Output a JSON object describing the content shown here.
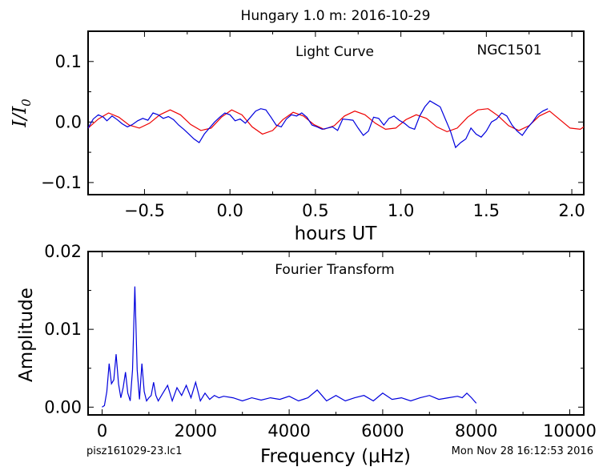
{
  "header": {
    "title": "Hungary 1.0 m:  2016-10-29",
    "footer_left": "pisz161029-23.lc1",
    "footer_right": "Mon Nov 28 16:12:53 2016"
  },
  "chart_data": [
    {
      "type": "line",
      "panel": "light-curve",
      "annotation_left": "Light Curve",
      "annotation_right": "NGC1501",
      "xlabel": "hours UT",
      "ylabel": "I/I0",
      "xlim": [
        -0.83,
        2.07
      ],
      "ylim": [
        -0.12,
        0.15
      ],
      "xticks": [
        -0.5,
        0.0,
        0.5,
        1.0,
        1.5,
        2.0
      ],
      "xtick_labels": [
        "−0.5",
        "0.0",
        "0.5",
        "1.0",
        "1.5",
        "2.0"
      ],
      "yticks": [
        -0.1,
        0.0,
        0.1
      ],
      "ytick_labels": [
        "−0.1",
        "0.0",
        "0.1"
      ],
      "colors": {
        "data": "#0000dd",
        "model": "#ee0000"
      },
      "series": [
        {
          "role": "data",
          "x": [
            -0.83,
            -0.8,
            -0.77,
            -0.74,
            -0.72,
            -0.69,
            -0.66,
            -0.63,
            -0.6,
            -0.57,
            -0.54,
            -0.51,
            -0.48,
            -0.45,
            -0.42,
            -0.39,
            -0.36,
            -0.33,
            -0.3,
            -0.27,
            -0.24,
            -0.21,
            -0.18,
            -0.15,
            -0.12,
            -0.09,
            -0.06,
            -0.03,
            0.0,
            0.03,
            0.06,
            0.09,
            0.12,
            0.15,
            0.18,
            0.21,
            0.24,
            0.27,
            0.3,
            0.33,
            0.36,
            0.39,
            0.42,
            0.45,
            0.48,
            0.51,
            0.54,
            0.57,
            0.6,
            0.63,
            0.66,
            0.69,
            0.72,
            0.75,
            0.78,
            0.81,
            0.84,
            0.87,
            0.9,
            0.93,
            0.96,
            0.99,
            1.02,
            1.05,
            1.08,
            1.11,
            1.14,
            1.17,
            1.2,
            1.23,
            1.26,
            1.29,
            1.32,
            1.35,
            1.38,
            1.41,
            1.44,
            1.47,
            1.5,
            1.53,
            1.56,
            1.59,
            1.62,
            1.65,
            1.68,
            1.71,
            1.74,
            1.77,
            1.8,
            1.83,
            1.86
          ],
          "y": [
            -0.01,
            0.005,
            0.012,
            0.008,
            0.002,
            0.01,
            0.004,
            -0.003,
            -0.008,
            -0.004,
            0.002,
            0.006,
            0.003,
            0.015,
            0.012,
            0.006,
            0.009,
            0.004,
            -0.005,
            -0.012,
            -0.02,
            -0.028,
            -0.034,
            -0.02,
            -0.01,
            0.0,
            0.008,
            0.015,
            0.012,
            0.002,
            0.005,
            -0.002,
            0.008,
            0.018,
            0.022,
            0.02,
            0.008,
            -0.005,
            -0.008,
            0.005,
            0.012,
            0.01,
            0.015,
            0.008,
            -0.005,
            -0.008,
            -0.012,
            -0.01,
            -0.008,
            -0.014,
            0.005,
            0.004,
            0.003,
            -0.01,
            -0.022,
            -0.015,
            0.008,
            0.006,
            -0.005,
            0.006,
            0.01,
            0.003,
            -0.002,
            -0.009,
            -0.012,
            0.01,
            0.025,
            0.035,
            0.03,
            0.025,
            0.005,
            -0.015,
            -0.042,
            -0.034,
            -0.028,
            -0.01,
            -0.02,
            -0.025,
            -0.015,
            0.0,
            0.005,
            0.015,
            0.01,
            -0.005,
            -0.015,
            -0.022,
            -0.01,
            0.0,
            0.012,
            0.018,
            0.022
          ]
        },
        {
          "role": "model",
          "x": [
            -0.83,
            -0.77,
            -0.71,
            -0.65,
            -0.59,
            -0.53,
            -0.47,
            -0.41,
            -0.35,
            -0.29,
            -0.23,
            -0.17,
            -0.11,
            -0.05,
            0.01,
            0.07,
            0.13,
            0.19,
            0.25,
            0.31,
            0.37,
            0.43,
            0.49,
            0.55,
            0.61,
            0.67,
            0.73,
            0.79,
            0.85,
            0.91,
            0.97,
            1.03,
            1.09,
            1.15,
            1.21,
            1.27,
            1.33,
            1.39,
            1.45,
            1.51,
            1.57,
            1.63,
            1.69,
            1.75,
            1.81,
            1.87,
            1.93,
            1.99,
            2.05,
            2.07
          ],
          "y": [
            -0.01,
            0.005,
            0.015,
            0.008,
            -0.005,
            -0.01,
            -0.002,
            0.012,
            0.02,
            0.012,
            -0.004,
            -0.014,
            -0.01,
            0.008,
            0.02,
            0.012,
            -0.008,
            -0.02,
            -0.014,
            0.004,
            0.016,
            0.01,
            -0.004,
            -0.012,
            -0.006,
            0.01,
            0.018,
            0.012,
            -0.002,
            -0.012,
            -0.01,
            0.004,
            0.012,
            0.006,
            -0.008,
            -0.016,
            -0.01,
            0.008,
            0.02,
            0.022,
            0.01,
            -0.006,
            -0.014,
            -0.006,
            0.01,
            0.018,
            0.004,
            -0.01,
            -0.012,
            -0.008
          ]
        }
      ]
    },
    {
      "type": "line",
      "panel": "fourier-transform",
      "annotation": "Fourier Transform",
      "xlabel": "Frequency (μHz)",
      "ylabel": "Amplitude",
      "xlim": [
        -300,
        10300
      ],
      "ylim": [
        -0.001,
        0.02
      ],
      "xticks": [
        0,
        2000,
        4000,
        6000,
        8000,
        10000
      ],
      "xtick_labels": [
        "0",
        "2000",
        "4000",
        "6000",
        "8000",
        "10000"
      ],
      "yticks": [
        0.0,
        0.01,
        0.02
      ],
      "ytick_labels": [
        "0.00",
        "0.01",
        "0.02"
      ],
      "colors": {
        "data": "#0000dd"
      },
      "series": [
        {
          "role": "spectrum",
          "x": [
            0,
            50,
            100,
            150,
            200,
            250,
            300,
            350,
            400,
            450,
            500,
            550,
            600,
            650,
            700,
            750,
            800,
            850,
            900,
            950,
            1000,
            1050,
            1100,
            1150,
            1200,
            1300,
            1400,
            1500,
            1600,
            1700,
            1800,
            1900,
            2000,
            2100,
            2200,
            2300,
            2400,
            2500,
            2600,
            2800,
            3000,
            3200,
            3400,
            3600,
            3800,
            4000,
            4200,
            4400,
            4600,
            4700,
            4800,
            5000,
            5200,
            5400,
            5600,
            5800,
            6000,
            6200,
            6400,
            6600,
            6800,
            7000,
            7200,
            7400,
            7600,
            7700,
            7800,
            7900,
            8000
          ],
          "y": [
            0.0,
            0.0002,
            0.002,
            0.0056,
            0.003,
            0.0035,
            0.0068,
            0.003,
            0.0012,
            0.0025,
            0.0045,
            0.0018,
            0.0008,
            0.0048,
            0.0155,
            0.0048,
            0.001,
            0.0056,
            0.002,
            0.0008,
            0.0012,
            0.0015,
            0.0032,
            0.0015,
            0.0008,
            0.0018,
            0.0028,
            0.0008,
            0.0025,
            0.0015,
            0.0028,
            0.0012,
            0.0032,
            0.0008,
            0.0018,
            0.001,
            0.0015,
            0.0012,
            0.0014,
            0.0012,
            0.0008,
            0.0012,
            0.0009,
            0.0012,
            0.001,
            0.0014,
            0.0008,
            0.0012,
            0.0022,
            0.0015,
            0.0008,
            0.0015,
            0.0008,
            0.0012,
            0.0015,
            0.0008,
            0.0018,
            0.001,
            0.0012,
            0.0008,
            0.0012,
            0.0015,
            0.001,
            0.0012,
            0.0014,
            0.0012,
            0.0018,
            0.0012,
            0.0005
          ]
        }
      ]
    }
  ]
}
